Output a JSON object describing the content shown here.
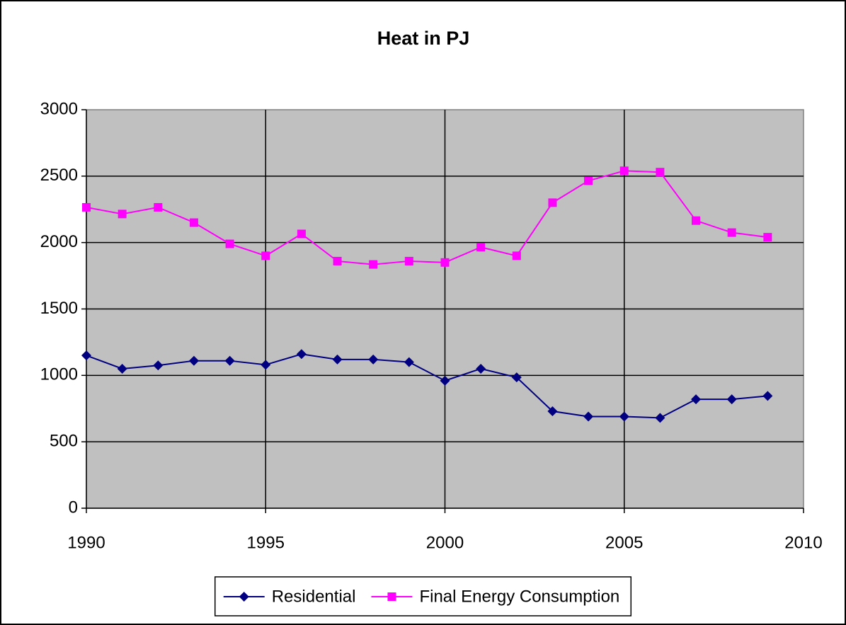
{
  "chart_data": {
    "type": "line",
    "title": "Heat in PJ",
    "x": [
      1990,
      1991,
      1992,
      1993,
      1994,
      1995,
      1996,
      1997,
      1998,
      1999,
      2000,
      2001,
      2002,
      2003,
      2004,
      2005,
      2006,
      2007,
      2008,
      2009
    ],
    "series": [
      {
        "name": "Residential",
        "color": "#000080",
        "marker": "diamond",
        "values": [
          1150,
          1050,
          1075,
          1110,
          1110,
          1080,
          1160,
          1120,
          1120,
          1100,
          960,
          1050,
          985,
          730,
          690,
          690,
          680,
          820,
          820,
          845
        ]
      },
      {
        "name": "Final Energy Consumption",
        "color": "#ff00ff",
        "marker": "square",
        "values": [
          2265,
          2215,
          2265,
          2150,
          1990,
          1900,
          2065,
          1860,
          1835,
          1860,
          1850,
          1965,
          1900,
          2300,
          2465,
          2540,
          2530,
          2165,
          2075,
          2040
        ]
      }
    ],
    "xlim": [
      1990,
      2010
    ],
    "xticks": [
      1990,
      1995,
      2000,
      2005,
      2010
    ],
    "ylim": [
      0,
      3000
    ],
    "yticks": [
      0,
      500,
      1000,
      1500,
      2000,
      2500,
      3000
    ],
    "grid": true,
    "legend": "bottom"
  }
}
